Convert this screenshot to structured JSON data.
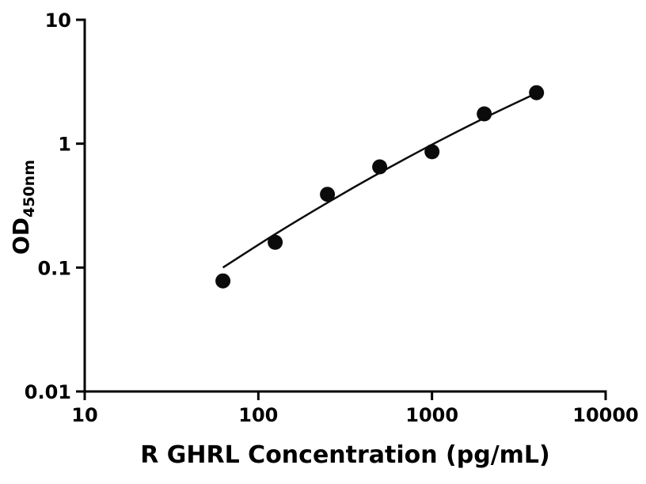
{
  "figure": {
    "background": "#ffffff",
    "axis_color": "#000000",
    "text_color": "#000000"
  },
  "chart_data": {
    "type": "scatter",
    "title": "",
    "xlabel": "R GHRL Concentration (pg/mL)",
    "ylabel_main": "OD",
    "ylabel_subscript": "450nm",
    "x_scale": "log",
    "y_scale": "log",
    "xlim": [
      10,
      10000
    ],
    "ylim": [
      0.01,
      10
    ],
    "x_ticks": [
      10,
      100,
      1000,
      10000
    ],
    "x_tick_labels": [
      "10",
      "100",
      "1000",
      "10000"
    ],
    "y_ticks": [
      0.01,
      0.1,
      1,
      10
    ],
    "y_tick_labels": [
      "0.01",
      "0.1",
      "1",
      "10"
    ],
    "grid": false,
    "legend": false,
    "series": [
      {
        "name": "standards",
        "marker": "circle",
        "marker_radius": 9.5,
        "color": "#0b0b0b",
        "x": [
          62.5,
          125,
          250,
          500,
          1000,
          2000,
          4000
        ],
        "y": [
          0.078,
          0.16,
          0.39,
          0.65,
          0.86,
          1.74,
          2.58
        ]
      }
    ],
    "fit_curve": {
      "name": "fitted-standard-curve",
      "color": "#0b0b0b",
      "line_width": 2.5,
      "x": [
        62.5,
        125,
        250,
        500,
        1000,
        2000,
        4000
      ],
      "y": [
        0.1,
        0.186,
        0.334,
        0.582,
        0.983,
        1.611,
        2.559
      ]
    }
  }
}
